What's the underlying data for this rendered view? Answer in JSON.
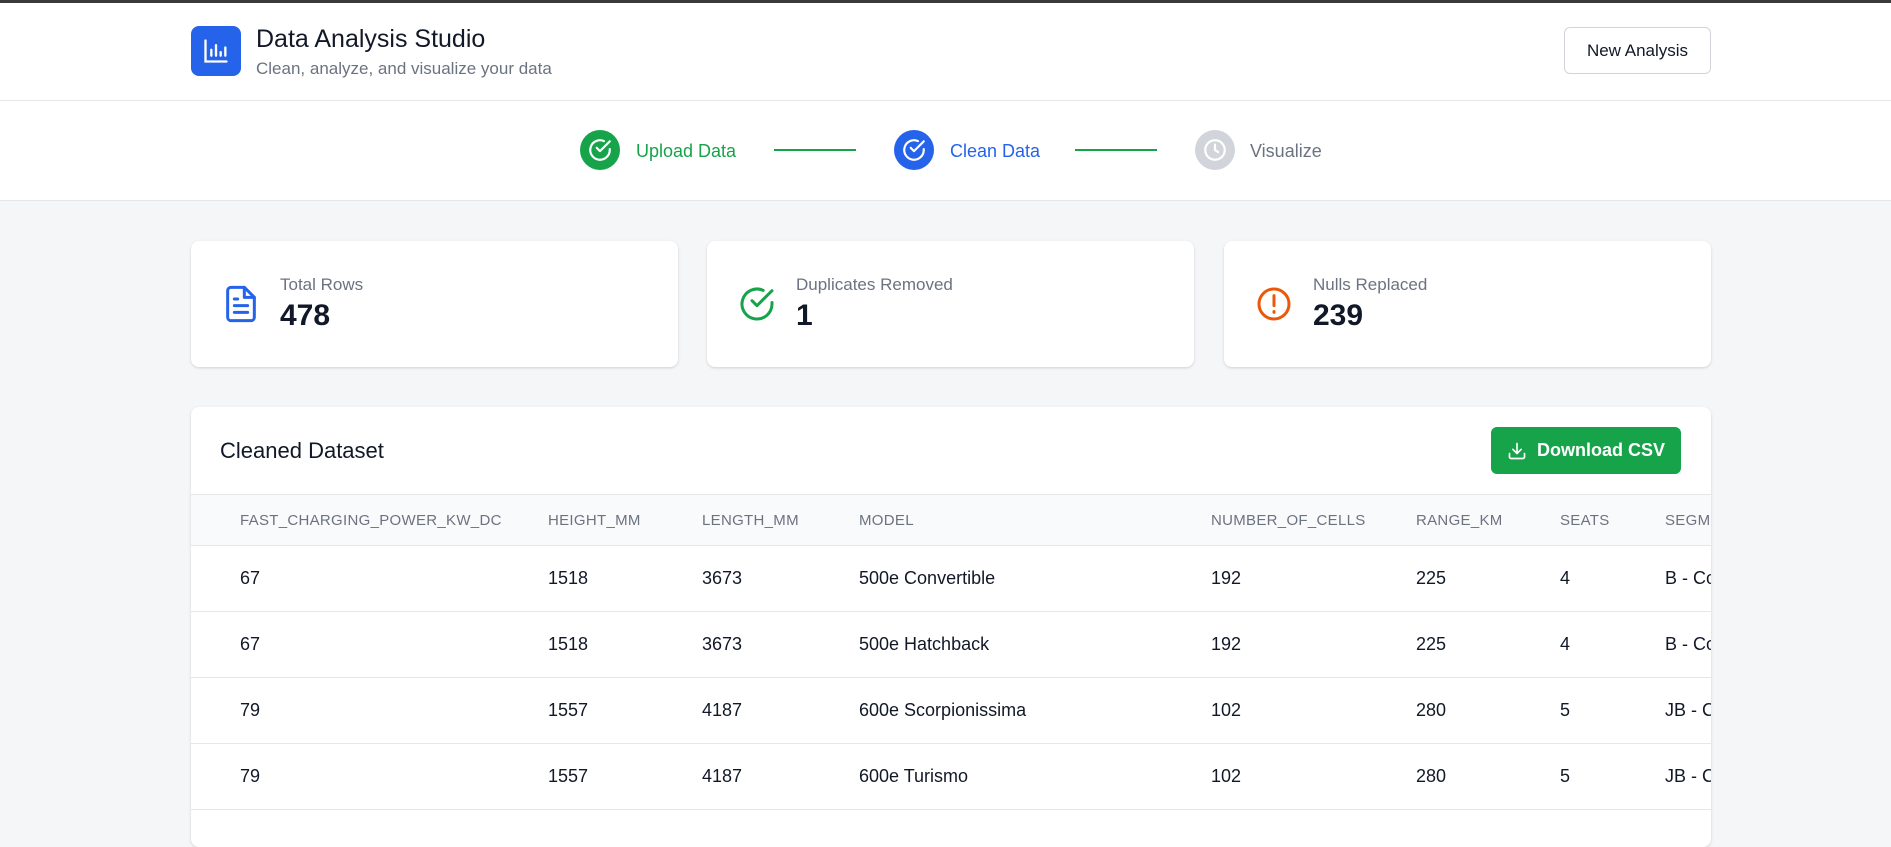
{
  "header": {
    "title": "Data Analysis Studio",
    "subtitle": "Clean, analyze, and visualize your data",
    "new_button": "New Analysis"
  },
  "stepper": {
    "steps": [
      {
        "label": "Upload Data",
        "status": "complete",
        "color": "#16a34a"
      },
      {
        "label": "Clean Data",
        "status": "current",
        "color": "#2563eb"
      },
      {
        "label": "Visualize",
        "status": "pending",
        "color": "#6b7280"
      }
    ]
  },
  "stats": [
    {
      "label": "Total Rows",
      "value": "478",
      "icon": "document-icon",
      "color": "#2563eb"
    },
    {
      "label": "Duplicates Removed",
      "value": "1",
      "icon": "check-circle-icon",
      "color": "#16a34a"
    },
    {
      "label": "Nulls Replaced",
      "value": "239",
      "icon": "alert-circle-icon",
      "color": "#ea580c"
    }
  ],
  "dataset": {
    "title": "Cleaned Dataset",
    "download_label": "Download CSV",
    "columns": [
      "FAST_CHARGING_POWER_KW_DC",
      "HEIGHT_MM",
      "LENGTH_MM",
      "MODEL",
      "NUMBER_OF_CELLS",
      "RANGE_KM",
      "SEATS",
      "SEGMENT"
    ],
    "rows": [
      [
        "67",
        "1518",
        "3673",
        "500e Convertible",
        "192",
        "225",
        "4",
        "B - Co"
      ],
      [
        "67",
        "1518",
        "3673",
        "500e Hatchback",
        "192",
        "225",
        "4",
        "B - Co"
      ],
      [
        "79",
        "1557",
        "4187",
        "600e Scorpionissima",
        "102",
        "280",
        "5",
        "JB - Co"
      ],
      [
        "79",
        "1557",
        "4187",
        "600e Turismo",
        "102",
        "280",
        "5",
        "JB - Co"
      ]
    ]
  },
  "colors": {
    "primary": "#2563eb",
    "success": "#16a34a",
    "warning": "#ea580c",
    "pending": "#d1d5db"
  }
}
